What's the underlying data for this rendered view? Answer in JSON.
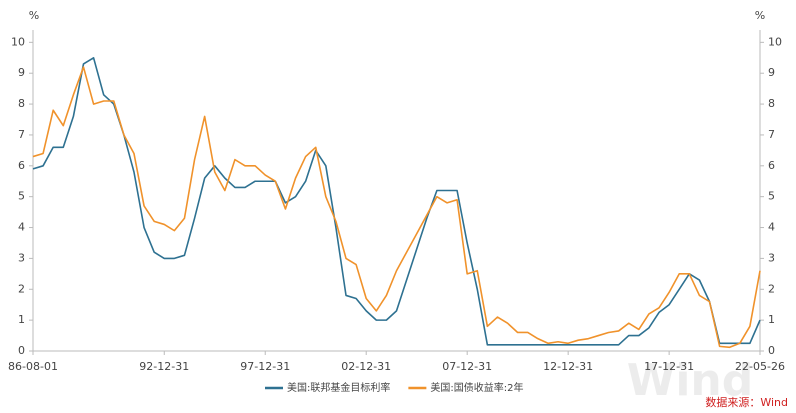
{
  "chart_data": {
    "type": "line",
    "y_unit": "%",
    "categories": [
      "86-08-01",
      null,
      null,
      null,
      null,
      null,
      null,
      null,
      null,
      null,
      null,
      null,
      null,
      "92-12-31",
      null,
      null,
      null,
      null,
      null,
      null,
      null,
      null,
      null,
      "97-12-31",
      null,
      null,
      null,
      null,
      null,
      null,
      null,
      null,
      null,
      "02-12-31",
      null,
      null,
      null,
      null,
      null,
      null,
      null,
      null,
      null,
      "07-12-31",
      null,
      null,
      null,
      null,
      null,
      null,
      null,
      null,
      null,
      "12-12-31",
      null,
      null,
      null,
      null,
      null,
      null,
      null,
      null,
      null,
      "17-12-31",
      null,
      null,
      null,
      null,
      null,
      null,
      null,
      null,
      "22-05-26"
    ],
    "series": [
      {
        "name": "美国:联邦基金目标利率",
        "color": "#2e7191",
        "values": [
          5.9,
          6.0,
          6.6,
          6.6,
          7.6,
          9.3,
          9.5,
          8.3,
          8.0,
          7.0,
          5.8,
          4.0,
          3.2,
          3.0,
          3.0,
          3.1,
          4.3,
          5.6,
          6.0,
          5.6,
          5.3,
          5.3,
          5.5,
          5.5,
          5.5,
          4.8,
          5.0,
          5.5,
          6.5,
          6.0,
          4.0,
          1.8,
          1.7,
          1.3,
          1.0,
          1.0,
          1.3,
          2.3,
          3.3,
          4.3,
          5.2,
          5.2,
          5.2,
          3.5,
          2.0,
          0.2,
          0.2,
          0.2,
          0.2,
          0.2,
          0.2,
          0.2,
          0.2,
          0.2,
          0.2,
          0.2,
          0.2,
          0.2,
          0.2,
          0.5,
          0.5,
          0.75,
          1.25,
          1.5,
          2.0,
          2.5,
          2.3,
          1.6,
          0.25,
          0.25,
          0.25,
          0.25,
          1.0
        ]
      },
      {
        "name": "美国:国债收益率:2年",
        "color": "#f0922b",
        "values": [
          6.3,
          6.4,
          7.8,
          7.3,
          8.3,
          9.2,
          8.0,
          8.1,
          8.1,
          7.0,
          6.4,
          4.7,
          4.2,
          4.1,
          3.9,
          4.3,
          6.2,
          7.6,
          5.8,
          5.2,
          6.2,
          6.0,
          6.0,
          5.7,
          5.5,
          4.6,
          5.6,
          6.3,
          6.6,
          5.0,
          4.2,
          3.0,
          2.8,
          1.7,
          1.3,
          1.8,
          2.6,
          3.2,
          3.8,
          4.4,
          5.0,
          4.8,
          4.9,
          2.5,
          2.6,
          0.8,
          1.1,
          0.9,
          0.6,
          0.6,
          0.4,
          0.25,
          0.3,
          0.25,
          0.35,
          0.4,
          0.5,
          0.6,
          0.65,
          0.9,
          0.7,
          1.2,
          1.4,
          1.9,
          2.5,
          2.5,
          1.8,
          1.6,
          0.15,
          0.12,
          0.25,
          0.8,
          2.6
        ]
      }
    ],
    "ylim": [
      0,
      10.4
    ],
    "yticks": [
      0,
      1,
      2,
      3,
      4,
      5,
      6,
      7,
      8,
      9,
      10
    ],
    "source": "数据来源：Wind",
    "watermark": "Wind"
  }
}
